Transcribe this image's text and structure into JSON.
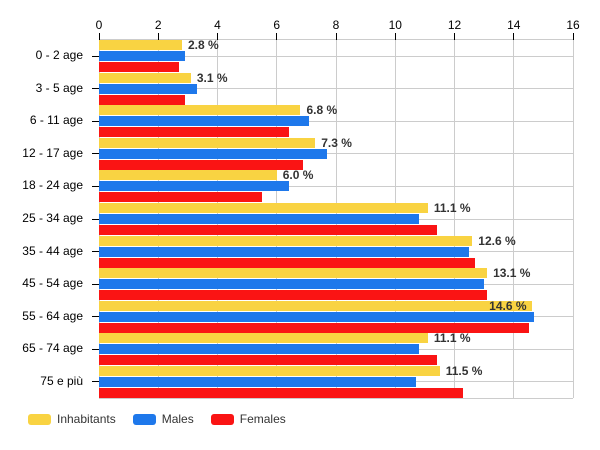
{
  "chart_data": {
    "type": "bar",
    "orientation": "horizontal",
    "title": "",
    "xlabel": "",
    "ylabel": "",
    "xlim": [
      0,
      16
    ],
    "x_ticks": [
      0,
      2,
      4,
      6,
      8,
      10,
      12,
      14,
      16
    ],
    "grid": true,
    "legend_position": "bottom-left",
    "categories": [
      "0 - 2 age",
      "3 - 5 age",
      "6 - 11 age",
      "12 - 17 age",
      "18 - 24 age",
      "25 - 34 age",
      "35 - 44 age",
      "45 - 54 age",
      "55 - 64 age",
      "65 - 74 age",
      "75 e più"
    ],
    "series": [
      {
        "name": "Inhabitants",
        "color": "#F9D342",
        "values": [
          2.8,
          3.1,
          6.8,
          7.3,
          6.0,
          11.1,
          12.6,
          13.1,
          14.6,
          11.1,
          11.5
        ]
      },
      {
        "name": "Males",
        "color": "#1E78EB",
        "values": [
          2.9,
          3.3,
          7.1,
          7.7,
          6.4,
          10.8,
          12.5,
          13.0,
          14.7,
          10.8,
          10.7
        ]
      },
      {
        "name": "Females",
        "color": "#FA1414",
        "values": [
          2.7,
          2.9,
          6.4,
          6.9,
          5.5,
          11.4,
          12.7,
          13.1,
          14.5,
          11.4,
          12.3
        ]
      }
    ],
    "value_labels": [
      "2.8 %",
      "3.1 %",
      "6.8 %",
      "7.3 %",
      "6.0 %",
      "11.1 %",
      "12.6 %",
      "13.1 %",
      "14.6 %",
      "11.1 %",
      "11.5 %"
    ]
  },
  "colors": {
    "grid": "#CCCCCC",
    "axis_line": "#CCCCCC",
    "tick": "#000000",
    "value_label": "#333333",
    "category_label": "#000000",
    "legend_text": "#333333",
    "background": "#FFFFFF"
  }
}
